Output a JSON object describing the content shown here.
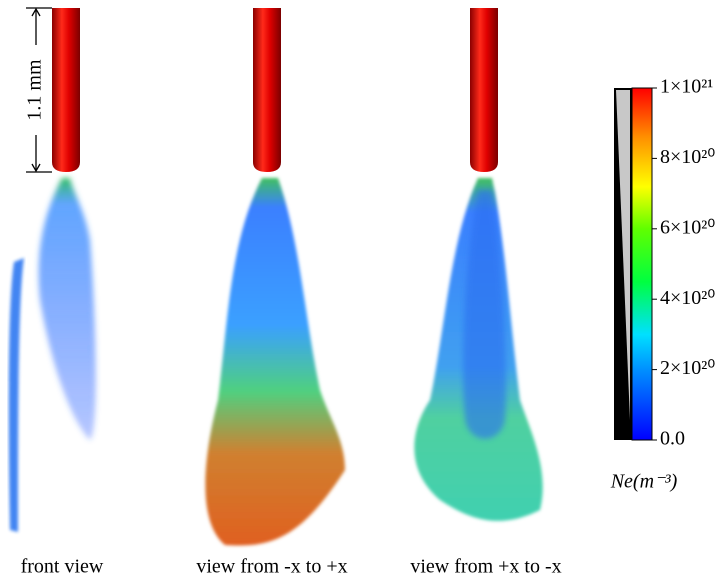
{
  "scale_label": "1.1 mm",
  "panels": [
    {
      "label": "front view"
    },
    {
      "label": "view from -x to +x"
    },
    {
      "label": "view from +x to -x"
    }
  ],
  "colorbar": {
    "label": "Ne(m⁻³)",
    "range": [
      0,
      1e+21
    ],
    "ticks": [
      {
        "value": 1e+21,
        "label": "1×10²¹"
      },
      {
        "value": 8e+20,
        "label": "8×10²⁰"
      },
      {
        "value": 6e+20,
        "label": "6×10²⁰"
      },
      {
        "value": 4e+20,
        "label": "4×10²⁰"
      },
      {
        "value": 2e+20,
        "label": "2×10²⁰"
      },
      {
        "value": 0,
        "label": "0.0"
      }
    ]
  }
}
